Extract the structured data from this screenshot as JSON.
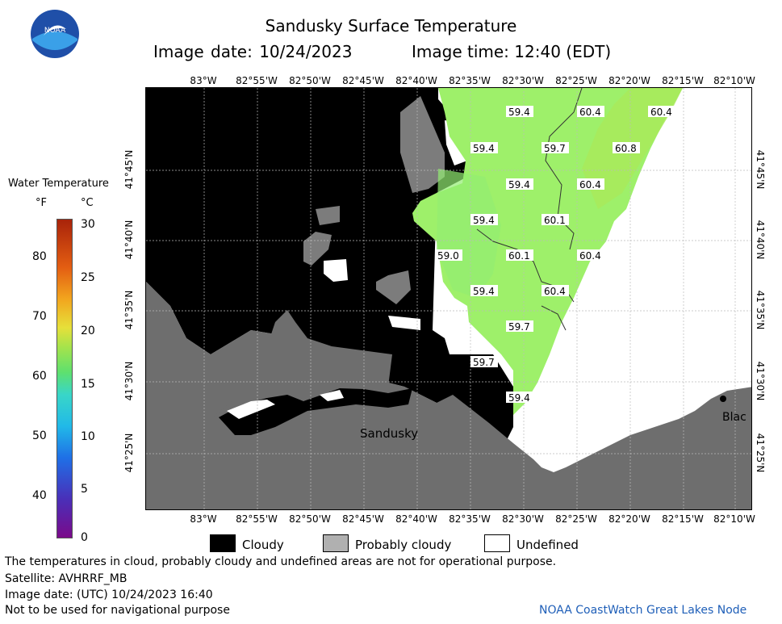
{
  "header": {
    "title": "Sandusky Surface Temperature",
    "image_date": "Image date: 10/24/2023",
    "image_time": "Image time: 12:40 (EDT)"
  },
  "logo": {
    "text": "NOAA"
  },
  "legend": {
    "title": "Water Temperature",
    "unit_f": "°F",
    "unit_c": "°C",
    "f_ticks": [
      "80",
      "70",
      "60",
      "50",
      "40"
    ],
    "c_ticks": [
      "30",
      "25",
      "20",
      "15",
      "10",
      "5",
      "0"
    ]
  },
  "axes": {
    "lon_labels": [
      "83°W",
      "82°55'W",
      "82°50'W",
      "82°45'W",
      "82°40'W",
      "82°35'W",
      "82°30'W",
      "82°25'W",
      "82°20'W",
      "82°15'W",
      "82°10'W"
    ],
    "lat_labels": [
      "41°45'N",
      "41°40'N",
      "41°35'N",
      "41°30'N",
      "41°25'N"
    ]
  },
  "map": {
    "place_labels": [
      "Sandusky",
      "Blac"
    ],
    "temperature_labels": [
      "59.4",
      "60.4",
      "60.4",
      "59.4",
      "59.7",
      "60.8",
      "59.4",
      "60.4",
      "59.4",
      "60.1",
      "59.0",
      "60.1",
      "60.4",
      "59.4",
      "60.4",
      "59.7",
      "59.7",
      "59.4"
    ]
  },
  "key": {
    "cloudy": "Cloudy",
    "probably_cloudy": "Probably cloudy",
    "undefined": "Undefined"
  },
  "footer": {
    "disclaimer": "The temperatures in cloud, probably cloudy and undefined areas are not for operational purpose.",
    "satellite": "Satellite: AVHRRF_MB",
    "utc_date": "Image date: (UTC) 10/24/2023  16:40",
    "nav_warning": "Not to be used for navigational purpose",
    "credit": "NOAA CoastWatch Great Lakes Node"
  },
  "colors": {
    "land": "#6e6e6e",
    "cloudy": "#000000",
    "probably_cloudy": "#7c7c7c",
    "water_temp": "#9ef06a",
    "credit": "#1f5fb8"
  }
}
